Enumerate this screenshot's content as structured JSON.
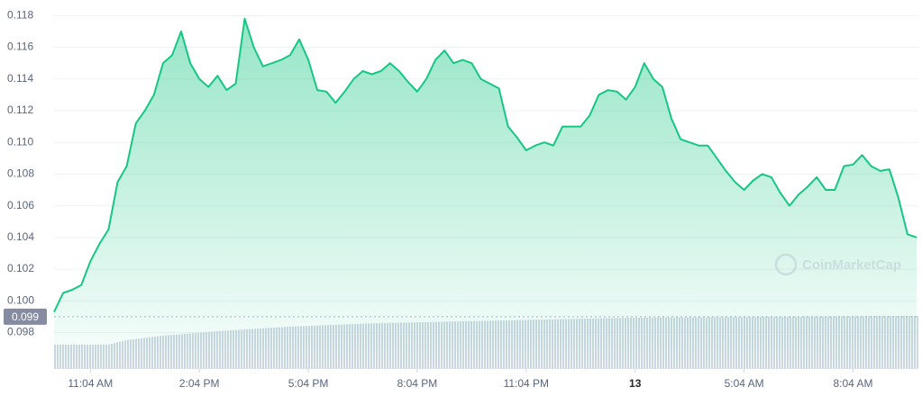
{
  "chart_data": {
    "type": "area",
    "watermark": "CoinMarketCap",
    "color": "#16c784",
    "ylim": [
      0.0957,
      0.1187
    ],
    "yticks": [
      0.098,
      {
        "value": 0.1,
        "label": "0.100"
      },
      0.102,
      0.104,
      0.106,
      0.108,
      {
        "value": 0.11,
        "label": "0.110"
      },
      0.112,
      0.114,
      0.116,
      0.118
    ],
    "xlim": [
      0,
      23.8
    ],
    "xticks": [
      {
        "value": 1,
        "label": "11:04 AM"
      },
      {
        "value": 4,
        "label": "2:04 PM"
      },
      {
        "value": 7,
        "label": "5:04 PM"
      },
      {
        "value": 10,
        "label": "8:04 PM"
      },
      {
        "value": 13,
        "label": "11:04 PM"
      },
      {
        "value": 16,
        "label": "13"
      },
      {
        "value": 19,
        "label": "5:04 AM"
      },
      {
        "value": 22,
        "label": "8:04 AM"
      }
    ],
    "price_marker": {
      "value": 0.099,
      "label": "0.099"
    },
    "x": [
      0,
      0.25,
      0.5,
      0.75,
      1,
      1.25,
      1.5,
      1.75,
      2,
      2.25,
      2.5,
      2.75,
      3,
      3.25,
      3.5,
      3.75,
      4,
      4.25,
      4.5,
      4.75,
      5,
      5.25,
      5.5,
      5.75,
      6,
      6.25,
      6.5,
      6.75,
      7,
      7.25,
      7.5,
      7.75,
      8,
      8.25,
      8.5,
      8.75,
      9,
      9.25,
      9.5,
      9.75,
      10,
      10.25,
      10.5,
      10.75,
      11,
      11.25,
      11.5,
      11.75,
      12,
      12.25,
      12.5,
      12.75,
      13,
      13.25,
      13.5,
      13.75,
      14,
      14.25,
      14.5,
      14.75,
      15,
      15.25,
      15.5,
      15.75,
      16,
      16.25,
      16.5,
      16.75,
      17,
      17.25,
      17.5,
      17.75,
      18,
      18.25,
      18.5,
      18.75,
      19,
      19.25,
      19.5,
      19.75,
      20,
      20.25,
      20.5,
      20.75,
      21,
      21.25,
      21.5,
      21.75,
      22,
      22.25,
      22.5,
      22.75,
      23,
      23.25,
      23.5,
      23.75
    ],
    "values": [
      0.0993,
      0.1005,
      0.1007,
      0.101,
      0.1025,
      0.1036,
      0.1045,
      0.1075,
      0.1085,
      0.1112,
      0.112,
      0.113,
      0.115,
      0.1155,
      0.117,
      0.115,
      0.114,
      0.1135,
      0.1142,
      0.1133,
      0.1137,
      0.1178,
      0.116,
      0.1148,
      0.115,
      0.1152,
      0.1155,
      0.1165,
      0.1152,
      0.1133,
      0.1132,
      0.1125,
      0.1132,
      0.114,
      0.1145,
      0.1143,
      0.1145,
      0.115,
      0.1145,
      0.1138,
      0.1132,
      0.114,
      0.1152,
      0.1158,
      0.115,
      0.1152,
      0.115,
      0.114,
      0.1137,
      0.1134,
      0.111,
      0.1103,
      0.1095,
      0.1098,
      0.11,
      0.1098,
      0.111,
      0.111,
      0.111,
      0.1117,
      0.113,
      0.1133,
      0.1132,
      0.1127,
      0.1135,
      0.115,
      0.114,
      0.1135,
      0.1115,
      0.1102,
      0.11,
      0.1098,
      0.1098,
      0.109,
      0.1082,
      0.1075,
      0.107,
      0.1076,
      0.108,
      0.1078,
      0.1068,
      0.106,
      0.1067,
      0.1072,
      0.1078,
      0.107,
      0.107,
      0.1085,
      0.1086,
      0.1092,
      0.1085,
      0.1082,
      0.1083,
      0.1065,
      0.1042,
      0.104
    ]
  }
}
